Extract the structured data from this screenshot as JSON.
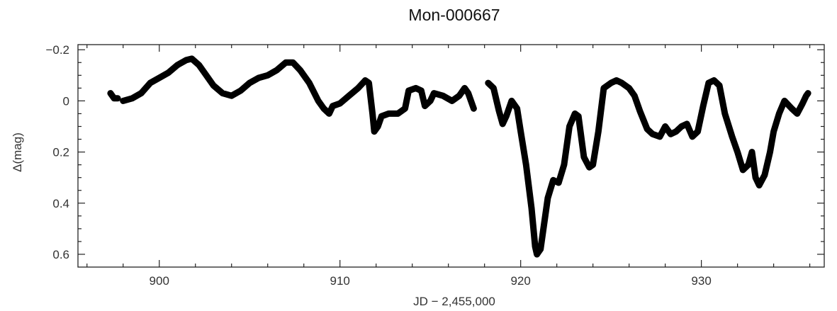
{
  "chart_data": {
    "type": "scatter",
    "title": "Mon-000667",
    "xlabel": "JD − 2,455,000",
    "ylabel": "Δ(mag)",
    "xlim": [
      895.5,
      936.8
    ],
    "ylim": [
      0.65,
      -0.22
    ],
    "y_inverted": true,
    "grid": false,
    "legend": "none",
    "x_ticks": [
      900,
      910,
      920,
      930
    ],
    "x_tick_labels": [
      "900",
      "910",
      "920",
      "930"
    ],
    "y_ticks": [
      -0.2,
      0,
      0.2,
      0.4,
      0.6
    ],
    "y_tick_labels": [
      "−0.2",
      "0",
      "0.2",
      "0.4",
      "0.6"
    ],
    "marker_color": "#000000",
    "series": [
      {
        "segments": [
          [
            [
              897.3,
              -0.03
            ],
            [
              897.5,
              -0.01
            ],
            [
              897.7,
              -0.01
            ]
          ],
          [
            [
              898.0,
              0.0
            ],
            [
              898.5,
              -0.01
            ],
            [
              899.0,
              -0.03
            ],
            [
              899.5,
              -0.07
            ],
            [
              900.0,
              -0.09
            ],
            [
              900.5,
              -0.11
            ],
            [
              901.0,
              -0.14
            ],
            [
              901.5,
              -0.16
            ],
            [
              901.8,
              -0.165
            ],
            [
              902.2,
              -0.14
            ],
            [
              902.5,
              -0.11
            ],
            [
              903.0,
              -0.06
            ],
            [
              903.5,
              -0.03
            ],
            [
              904.0,
              -0.02
            ],
            [
              904.5,
              -0.04
            ],
            [
              905.0,
              -0.07
            ],
            [
              905.5,
              -0.09
            ],
            [
              906.0,
              -0.1
            ],
            [
              906.5,
              -0.12
            ],
            [
              907.0,
              -0.15
            ],
            [
              907.4,
              -0.15
            ],
            [
              907.8,
              -0.12
            ],
            [
              908.3,
              -0.07
            ],
            [
              908.8,
              0.0
            ],
            [
              909.1,
              0.03
            ],
            [
              909.4,
              0.05
            ],
            [
              909.6,
              0.02
            ],
            [
              910.0,
              0.01
            ],
            [
              910.5,
              -0.02
            ],
            [
              911.0,
              -0.05
            ],
            [
              911.4,
              -0.08
            ],
            [
              911.6,
              -0.07
            ],
            [
              911.8,
              0.05
            ],
            [
              911.9,
              0.12
            ],
            [
              912.1,
              0.1
            ],
            [
              912.3,
              0.06
            ],
            [
              912.7,
              0.05
            ],
            [
              913.2,
              0.05
            ],
            [
              913.6,
              0.03
            ],
            [
              913.8,
              -0.04
            ],
            [
              914.2,
              -0.05
            ],
            [
              914.5,
              -0.04
            ],
            [
              914.7,
              0.02
            ],
            [
              915.0,
              0.0
            ],
            [
              915.2,
              -0.03
            ],
            [
              915.7,
              -0.02
            ],
            [
              916.2,
              0.0
            ],
            [
              916.6,
              -0.02
            ],
            [
              916.9,
              -0.05
            ],
            [
              917.1,
              -0.03
            ],
            [
              917.4,
              0.03
            ]
          ],
          [
            [
              918.2,
              -0.07
            ],
            [
              918.5,
              -0.05
            ],
            [
              918.8,
              0.04
            ],
            [
              919.0,
              0.09
            ],
            [
              919.2,
              0.06
            ],
            [
              919.5,
              0.0
            ],
            [
              919.8,
              0.03
            ],
            [
              920.0,
              0.12
            ],
            [
              920.3,
              0.25
            ],
            [
              920.6,
              0.42
            ],
            [
              920.8,
              0.57
            ],
            [
              920.9,
              0.6
            ],
            [
              921.1,
              0.58
            ],
            [
              921.3,
              0.48
            ],
            [
              921.5,
              0.38
            ],
            [
              921.8,
              0.31
            ],
            [
              922.1,
              0.32
            ],
            [
              922.4,
              0.25
            ],
            [
              922.7,
              0.1
            ],
            [
              923.0,
              0.05
            ],
            [
              923.2,
              0.06
            ],
            [
              923.5,
              0.22
            ],
            [
              923.8,
              0.26
            ],
            [
              924.0,
              0.25
            ],
            [
              924.3,
              0.12
            ],
            [
              924.6,
              -0.05
            ],
            [
              925.0,
              -0.07
            ],
            [
              925.3,
              -0.08
            ],
            [
              925.6,
              -0.07
            ],
            [
              926.0,
              -0.05
            ],
            [
              926.3,
              -0.02
            ],
            [
              926.6,
              0.04
            ],
            [
              927.0,
              0.11
            ],
            [
              927.3,
              0.13
            ],
            [
              927.7,
              0.14
            ],
            [
              928.0,
              0.1
            ],
            [
              928.3,
              0.13
            ],
            [
              928.6,
              0.12
            ],
            [
              928.9,
              0.1
            ],
            [
              929.2,
              0.09
            ],
            [
              929.5,
              0.14
            ],
            [
              929.8,
              0.12
            ],
            [
              930.1,
              0.02
            ],
            [
              930.4,
              -0.07
            ],
            [
              930.7,
              -0.08
            ],
            [
              931.0,
              -0.06
            ],
            [
              931.3,
              0.05
            ],
            [
              931.7,
              0.14
            ],
            [
              932.0,
              0.2
            ],
            [
              932.3,
              0.27
            ],
            [
              932.6,
              0.25
            ],
            [
              932.8,
              0.2
            ],
            [
              933.0,
              0.3
            ],
            [
              933.2,
              0.33
            ],
            [
              933.5,
              0.29
            ],
            [
              933.8,
              0.2
            ],
            [
              934.0,
              0.12
            ],
            [
              934.3,
              0.05
            ],
            [
              934.6,
              0.0
            ],
            [
              935.0,
              0.03
            ],
            [
              935.3,
              0.05
            ],
            [
              935.6,
              0.01
            ],
            [
              935.8,
              -0.02
            ],
            [
              935.9,
              -0.03
            ]
          ]
        ]
      }
    ]
  }
}
